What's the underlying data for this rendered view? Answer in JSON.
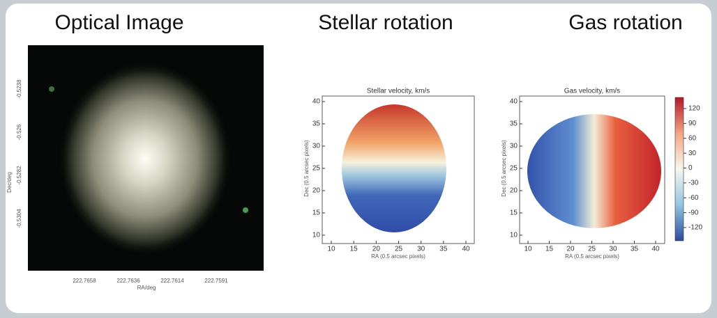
{
  "titles": [
    "Optical Image",
    "Stellar rotation",
    "Gas rotation"
  ],
  "optical": {
    "xlabel": "RA/deg",
    "ylabel": "Dec/deg",
    "xticks": [
      222.7658,
      222.7636,
      222.7614,
      222.7591
    ],
    "yticks": [
      -0.5238,
      -0.526,
      -0.5282,
      -0.5304
    ]
  },
  "stellar": {
    "title": "Stellar velocity, km/s",
    "xlabel": "RA (0.5 arcsec pixels)",
    "ylabel": "Dec (0.5 arcsec pixels)",
    "xticks": [
      10,
      15,
      20,
      25,
      30,
      35,
      40
    ],
    "yticks": [
      10,
      15,
      20,
      25,
      30,
      35,
      40
    ]
  },
  "gas": {
    "title": "Gas velocity, km/s",
    "xlabel": "RA (0.5 arcsec pixels)",
    "ylabel": "Dec (0.5 arcsec pixels)",
    "xticks": [
      10,
      15,
      20,
      25,
      30,
      35,
      40
    ],
    "yticks": [
      10,
      15,
      20,
      25,
      30,
      35,
      40
    ],
    "colorbar_ticks": [
      120,
      90,
      60,
      30,
      0,
      -30,
      -60,
      -90,
      -120
    ]
  }
}
